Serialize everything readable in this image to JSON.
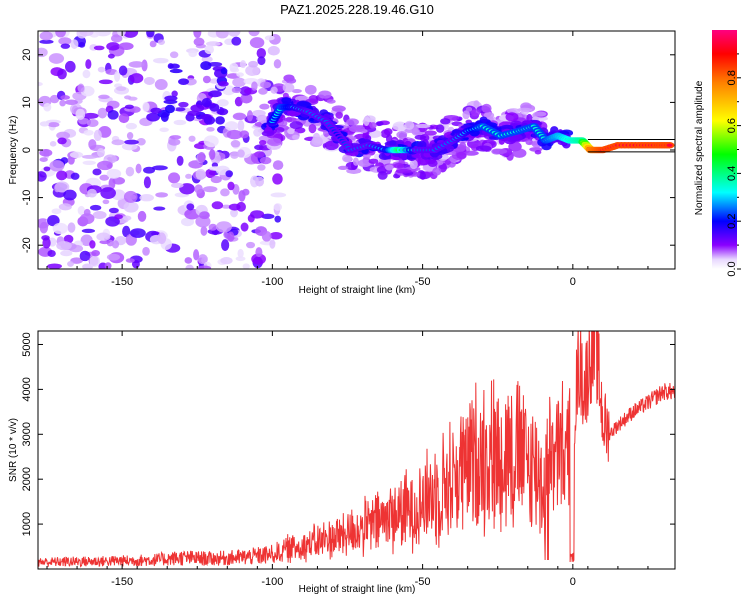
{
  "title": "PAZ1.2025.228.19.46.G10",
  "chart_data": [
    {
      "type": "heatmap",
      "xlabel": "Height of straight line (km)",
      "ylabel": "Frequency (Hz)",
      "xlim": [
        -178,
        34
      ],
      "ylim": [
        -25,
        25
      ],
      "xticks": [
        -150,
        -100,
        -50,
        0
      ],
      "yticks": [
        -20,
        -10,
        0,
        10,
        20
      ],
      "colorbar": {
        "label": "Normalized spectral amplitude",
        "range": [
          0,
          1
        ],
        "ticks": [
          0.0,
          0.2,
          0.4,
          0.6,
          0.8
        ],
        "colormap": [
          "#ffffff",
          "#e0c8ff",
          "#8000ff",
          "#0000ff",
          "#00ffff",
          "#00ff00",
          "#ffff00",
          "#ff8000",
          "#ff0000",
          "#ff0080"
        ]
      },
      "ridge": [
        {
          "x": -100,
          "y": 6,
          "amp": 0.3
        },
        {
          "x": -97,
          "y": 9,
          "amp": 0.35
        },
        {
          "x": -93,
          "y": 9,
          "amp": 0.3
        },
        {
          "x": -88,
          "y": 8,
          "amp": 0.25
        },
        {
          "x": -82,
          "y": 6,
          "amp": 0.25
        },
        {
          "x": -78,
          "y": 3,
          "amp": 0.2
        },
        {
          "x": -74,
          "y": 0,
          "amp": 0.25
        },
        {
          "x": -68,
          "y": 1,
          "amp": 0.25
        },
        {
          "x": -62,
          "y": 0,
          "amp": 0.3
        },
        {
          "x": -58,
          "y": 0,
          "amp": 0.5
        },
        {
          "x": -52,
          "y": 0,
          "amp": 0.25
        },
        {
          "x": -46,
          "y": 0,
          "amp": 0.25
        },
        {
          "x": -40,
          "y": 2,
          "amp": 0.25
        },
        {
          "x": -35,
          "y": 4,
          "amp": 0.3
        },
        {
          "x": -30,
          "y": 5,
          "amp": 0.35
        },
        {
          "x": -24,
          "y": 3,
          "amp": 0.35
        },
        {
          "x": -18,
          "y": 4,
          "amp": 0.35
        },
        {
          "x": -13,
          "y": 5,
          "amp": 0.35
        },
        {
          "x": -9,
          "y": 2,
          "amp": 0.35
        },
        {
          "x": -5,
          "y": 3,
          "amp": 0.4
        },
        {
          "x": -1,
          "y": 2,
          "amp": 0.45
        },
        {
          "x": 3,
          "y": 2,
          "amp": 0.5
        },
        {
          "x": 6,
          "y": 0,
          "amp": 0.9
        },
        {
          "x": 10,
          "y": 0,
          "amp": 0.95
        },
        {
          "x": 15,
          "y": 1,
          "amp": 0.95
        },
        {
          "x": 22,
          "y": 1,
          "amp": 0.95
        },
        {
          "x": 28,
          "y": 1,
          "amp": 0.95
        },
        {
          "x": 33,
          "y": 1,
          "amp": 0.95
        }
      ]
    },
    {
      "type": "line",
      "xlabel": "Height of straight line (km)",
      "ylabel": "SNR (10 * v/v)",
      "xlim": [
        -178,
        34
      ],
      "ylim": [
        0,
        5300
      ],
      "xticks": [
        -150,
        -100,
        -50,
        0
      ],
      "yticks": [
        1000,
        2000,
        3000,
        4000,
        5000
      ],
      "line_color": "#ee3333",
      "series": [
        {
          "x": [
            -178,
            -170,
            -160,
            -150,
            -140,
            -130,
            -120,
            -110,
            -100,
            -95,
            -90,
            -85,
            -80,
            -75,
            -70,
            -65,
            -60,
            -55,
            -50,
            -45,
            -40,
            -35,
            -30,
            -25,
            -20,
            -15,
            -12,
            -10,
            -8,
            -5,
            -2,
            0,
            2,
            4,
            6,
            8,
            10,
            12,
            15,
            20,
            25,
            30,
            34
          ],
          "y": [
            150,
            160,
            170,
            180,
            200,
            250,
            230,
            260,
            320,
            450,
            520,
            600,
            700,
            800,
            900,
            1050,
            1200,
            1300,
            1500,
            1750,
            2000,
            2300,
            2600,
            2500,
            2700,
            2300,
            2200,
            1900,
            2200,
            2500,
            2400,
            3100,
            4600,
            4000,
            4900,
            4800,
            3300,
            3000,
            3200,
            3500,
            3700,
            3950,
            3950
          ]
        }
      ]
    }
  ]
}
